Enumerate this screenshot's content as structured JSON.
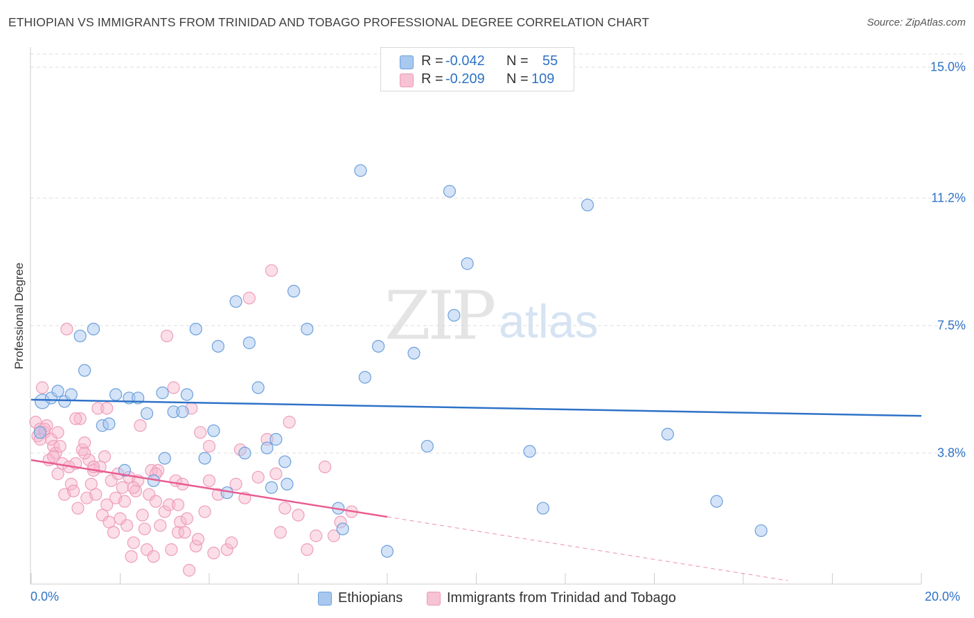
{
  "title": "ETHIOPIAN VS IMMIGRANTS FROM TRINIDAD AND TOBAGO PROFESSIONAL DEGREE CORRELATION CHART",
  "source": "Source: ZipAtlas.com",
  "watermark": {
    "zip": "ZIP",
    "atlas": "atlas"
  },
  "colors": {
    "blue": "#2e72c7",
    "blue_fill": "#a9c8ef",
    "pink": "#e85d90",
    "pink_fill": "#f6b6cb",
    "grid": "#dddddd"
  },
  "legend": {
    "rows": [
      {
        "r_label": "R =",
        "r_value": "-0.042",
        "n_label": "N =",
        "n_value": "55"
      },
      {
        "r_label": "R =",
        "r_value": "-0.209",
        "n_label": "N =",
        "n_value": "109"
      }
    ]
  },
  "bottom_legend": [
    "Ethiopians",
    "Immigrants from Trinidad and Tobago"
  ],
  "chart_data": {
    "type": "scatter",
    "xlabel": "",
    "ylabel": "Professional Degree",
    "xlim": [
      0,
      20
    ],
    "ylim": [
      0,
      15.4
    ],
    "x_tick_labels": [
      "0.0%",
      "20.0%"
    ],
    "y_ticks": [
      3.8,
      7.5,
      11.2,
      15.0
    ],
    "y_tick_labels": [
      "3.8%",
      "7.5%",
      "11.2%",
      "15.0%"
    ],
    "series": [
      {
        "name": "Ethiopians",
        "r": -0.042,
        "n": 55,
        "trend": {
          "x0": 0.0,
          "y0": 5.35,
          "x1": 20.0,
          "y1": 4.88
        },
        "points": [
          [
            0.25,
            5.3
          ],
          [
            0.45,
            5.4
          ],
          [
            0.6,
            5.6
          ],
          [
            0.75,
            5.3
          ],
          [
            0.9,
            5.5
          ],
          [
            1.1,
            7.2
          ],
          [
            1.2,
            6.2
          ],
          [
            1.4,
            7.4
          ],
          [
            1.6,
            4.6
          ],
          [
            1.75,
            4.65
          ],
          [
            1.9,
            5.5
          ],
          [
            2.1,
            3.3
          ],
          [
            2.2,
            5.4
          ],
          [
            2.4,
            5.4
          ],
          [
            2.6,
            4.95
          ],
          [
            2.75,
            3.0
          ],
          [
            2.95,
            5.55
          ],
          [
            3.0,
            3.65
          ],
          [
            3.2,
            5.0
          ],
          [
            3.4,
            5.0
          ],
          [
            3.5,
            5.5
          ],
          [
            3.7,
            7.4
          ],
          [
            3.9,
            3.65
          ],
          [
            4.1,
            4.45
          ],
          [
            4.2,
            6.9
          ],
          [
            4.4,
            2.65
          ],
          [
            4.6,
            8.2
          ],
          [
            4.8,
            3.8
          ],
          [
            4.9,
            7.0
          ],
          [
            5.1,
            5.7
          ],
          [
            5.3,
            3.95
          ],
          [
            5.4,
            2.8
          ],
          [
            5.5,
            4.2
          ],
          [
            5.7,
            3.55
          ],
          [
            5.75,
            2.9
          ],
          [
            5.9,
            8.5
          ],
          [
            6.2,
            7.4
          ],
          [
            6.9,
            2.2
          ],
          [
            7.0,
            1.6
          ],
          [
            7.4,
            12.0
          ],
          [
            7.5,
            6.0
          ],
          [
            7.8,
            6.9
          ],
          [
            8.0,
            0.95
          ],
          [
            8.6,
            6.7
          ],
          [
            8.9,
            4.0
          ],
          [
            9.4,
            11.4
          ],
          [
            9.5,
            7.8
          ],
          [
            9.8,
            9.3
          ],
          [
            11.2,
            3.85
          ],
          [
            11.5,
            2.2
          ],
          [
            12.5,
            11.0
          ],
          [
            14.3,
            4.35
          ],
          [
            15.4,
            2.4
          ],
          [
            16.4,
            1.55
          ],
          [
            0.2,
            4.4
          ]
        ]
      },
      {
        "name": "Immigrants from Trinidad and Tobago",
        "r": -0.209,
        "n": 109,
        "trend": {
          "x0": 0.0,
          "y0": 3.6,
          "x1": 8.0,
          "y1": 1.95
        },
        "trend_dashed": {
          "x0": 8.0,
          "y0": 1.95,
          "x1": 17.0,
          "y1": 0.1
        },
        "points": [
          [
            0.1,
            4.7
          ],
          [
            0.15,
            4.3
          ],
          [
            0.2,
            4.5
          ],
          [
            0.25,
            5.7
          ],
          [
            0.3,
            4.4
          ],
          [
            0.35,
            4.6
          ],
          [
            0.4,
            3.6
          ],
          [
            0.45,
            4.2
          ],
          [
            0.5,
            4.0
          ],
          [
            0.55,
            3.8
          ],
          [
            0.6,
            3.2
          ],
          [
            0.65,
            4.0
          ],
          [
            0.7,
            3.5
          ],
          [
            0.75,
            2.6
          ],
          [
            0.8,
            7.4
          ],
          [
            0.85,
            3.4
          ],
          [
            0.9,
            2.9
          ],
          [
            0.95,
            2.7
          ],
          [
            1.0,
            3.5
          ],
          [
            1.05,
            2.2
          ],
          [
            1.1,
            4.8
          ],
          [
            1.15,
            3.9
          ],
          [
            1.2,
            4.1
          ],
          [
            1.25,
            2.5
          ],
          [
            1.3,
            3.6
          ],
          [
            1.35,
            2.9
          ],
          [
            1.4,
            3.3
          ],
          [
            1.45,
            2.6
          ],
          [
            1.5,
            5.1
          ],
          [
            1.55,
            3.4
          ],
          [
            1.6,
            2.0
          ],
          [
            1.65,
            3.7
          ],
          [
            1.7,
            2.3
          ],
          [
            1.75,
            1.8
          ],
          [
            1.8,
            3.0
          ],
          [
            1.85,
            1.5
          ],
          [
            1.9,
            2.5
          ],
          [
            1.95,
            3.2
          ],
          [
            2.0,
            1.9
          ],
          [
            2.05,
            2.8
          ],
          [
            2.1,
            2.4
          ],
          [
            2.15,
            1.7
          ],
          [
            2.2,
            3.1
          ],
          [
            2.25,
            0.8
          ],
          [
            2.3,
            1.2
          ],
          [
            2.35,
            2.7
          ],
          [
            2.4,
            3.0
          ],
          [
            2.45,
            4.6
          ],
          [
            2.5,
            2.0
          ],
          [
            2.55,
            1.6
          ],
          [
            2.6,
            1.0
          ],
          [
            2.65,
            2.6
          ],
          [
            2.7,
            3.3
          ],
          [
            2.75,
            0.8
          ],
          [
            2.8,
            2.4
          ],
          [
            2.85,
            3.3
          ],
          [
            2.9,
            1.7
          ],
          [
            3.0,
            2.1
          ],
          [
            3.05,
            7.2
          ],
          [
            3.1,
            2.3
          ],
          [
            3.15,
            1.0
          ],
          [
            3.2,
            5.7
          ],
          [
            3.25,
            3.0
          ],
          [
            3.3,
            1.5
          ],
          [
            3.35,
            1.8
          ],
          [
            3.4,
            2.9
          ],
          [
            3.45,
            1.5
          ],
          [
            3.5,
            1.9
          ],
          [
            3.55,
            0.4
          ],
          [
            3.6,
            5.1
          ],
          [
            3.7,
            1.1
          ],
          [
            3.75,
            1.3
          ],
          [
            3.8,
            4.4
          ],
          [
            3.9,
            2.1
          ],
          [
            4.0,
            3.0
          ],
          [
            4.1,
            0.9
          ],
          [
            4.2,
            2.6
          ],
          [
            4.4,
            1.0
          ],
          [
            4.5,
            1.2
          ],
          [
            4.6,
            2.9
          ],
          [
            4.7,
            3.9
          ],
          [
            4.8,
            2.5
          ],
          [
            4.9,
            8.3
          ],
          [
            5.1,
            3.1
          ],
          [
            5.3,
            4.2
          ],
          [
            5.4,
            9.1
          ],
          [
            5.5,
            3.2
          ],
          [
            5.6,
            1.5
          ],
          [
            5.7,
            2.2
          ],
          [
            5.8,
            4.7
          ],
          [
            6.0,
            2.0
          ],
          [
            6.2,
            1.0
          ],
          [
            6.4,
            1.4
          ],
          [
            6.6,
            3.4
          ],
          [
            6.8,
            1.4
          ],
          [
            6.95,
            1.8
          ],
          [
            7.2,
            2.1
          ],
          [
            0.3,
            4.5
          ],
          [
            0.6,
            4.4
          ],
          [
            1.0,
            4.8
          ],
          [
            1.2,
            3.8
          ],
          [
            1.7,
            5.1
          ],
          [
            2.3,
            2.8
          ],
          [
            2.8,
            3.2
          ],
          [
            3.3,
            2.3
          ],
          [
            4.0,
            4.0
          ],
          [
            0.2,
            4.2
          ],
          [
            0.5,
            3.7
          ],
          [
            1.4,
            3.4
          ]
        ]
      }
    ]
  }
}
